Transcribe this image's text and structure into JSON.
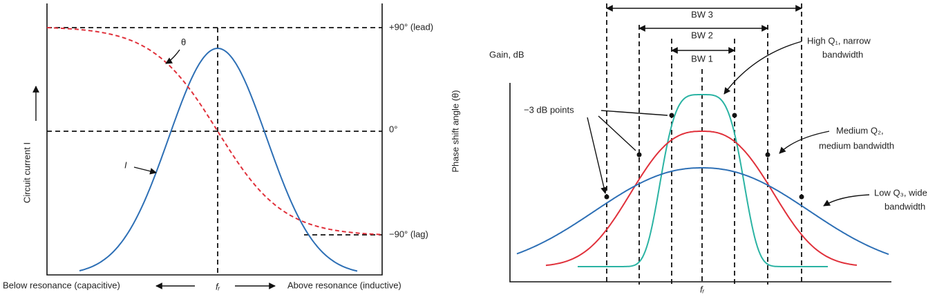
{
  "left": {
    "phase_labels": [
      "+90° (lead)",
      "0°",
      "−90° (lag)"
    ],
    "theta_label": "θ",
    "current_label": "I",
    "y_axis_label": "Circuit current I",
    "y2_axis_label": "Phase shift angle (θ)",
    "below_label": "Below resonance (capacitive)",
    "fr_label": "fᵣ",
    "above_label": "Above resonance (inductive)"
  },
  "right": {
    "bw_labels": [
      "BW 3",
      "BW 2",
      "BW 1"
    ],
    "y_axis_label": "Gain, dB",
    "points_label": "−3 dB points",
    "high_q": [
      "High Q₁, narrow",
      "bandwidth"
    ],
    "medium_q": [
      "Medium Q₂,",
      "medium bandwidth"
    ],
    "low_q": [
      "Low Q₃, wide",
      "bandwidth"
    ],
    "fr_label": "fᵣ"
  }
}
